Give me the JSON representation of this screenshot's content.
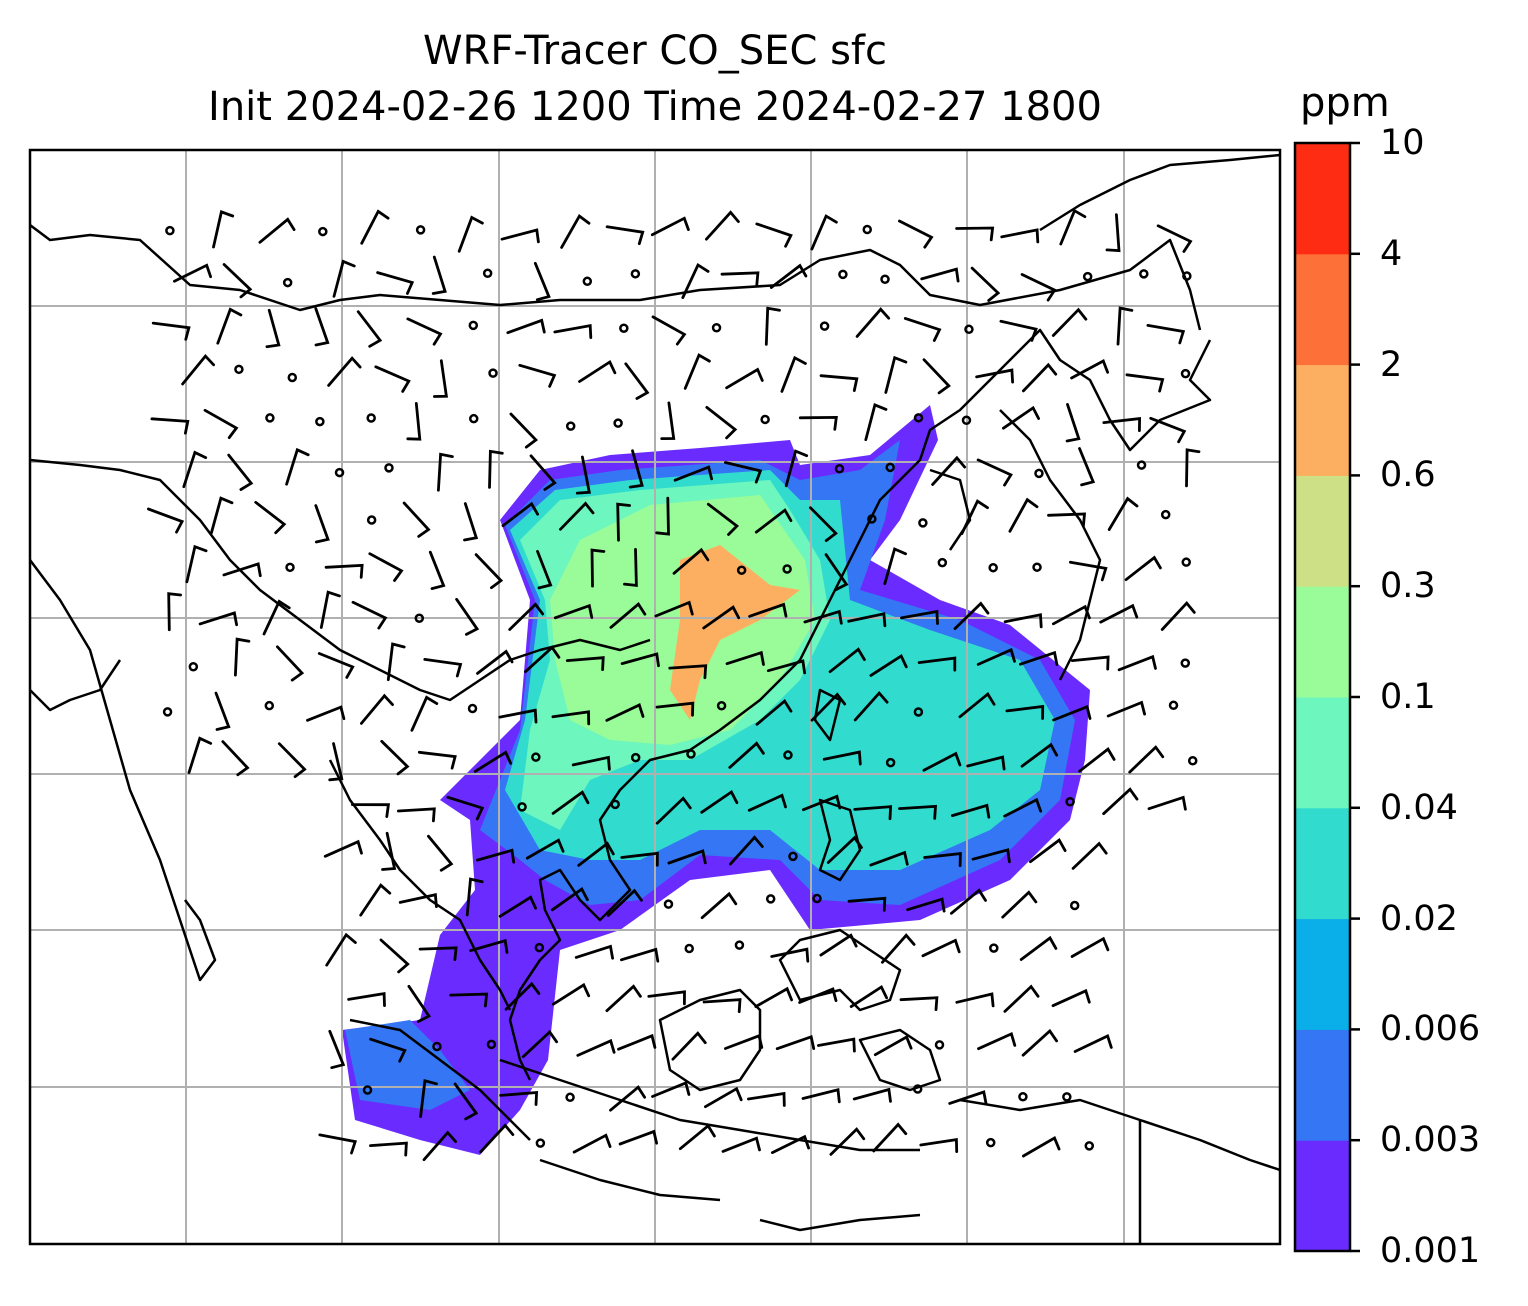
{
  "title": {
    "line1": "WRF-Tracer CO_SEC sfc",
    "line2": "Init 2024-02-26 1200 Time 2024-02-27 1800"
  },
  "colorbar": {
    "unit": "ppm",
    "levels": [
      "0.001",
      "0.003",
      "0.006",
      "0.02",
      "0.04",
      "0.1",
      "0.3",
      "0.6",
      "2",
      "4",
      "10"
    ],
    "colors": [
      "#6a2bff",
      "#3476f4",
      "#0aaee8",
      "#31dccf",
      "#6df6bd",
      "#9afb99",
      "#cde085",
      "#fdaf61",
      "#fd7037",
      "#fd2c13"
    ]
  },
  "map": {
    "grid": "on",
    "field_colors": {
      "outer": "#6a2bff",
      "blue": "#3476f4",
      "cyan": "#31dccf",
      "mint": "#6df6bd",
      "green": "#9afb99",
      "orange": "#fdaf61"
    }
  }
}
